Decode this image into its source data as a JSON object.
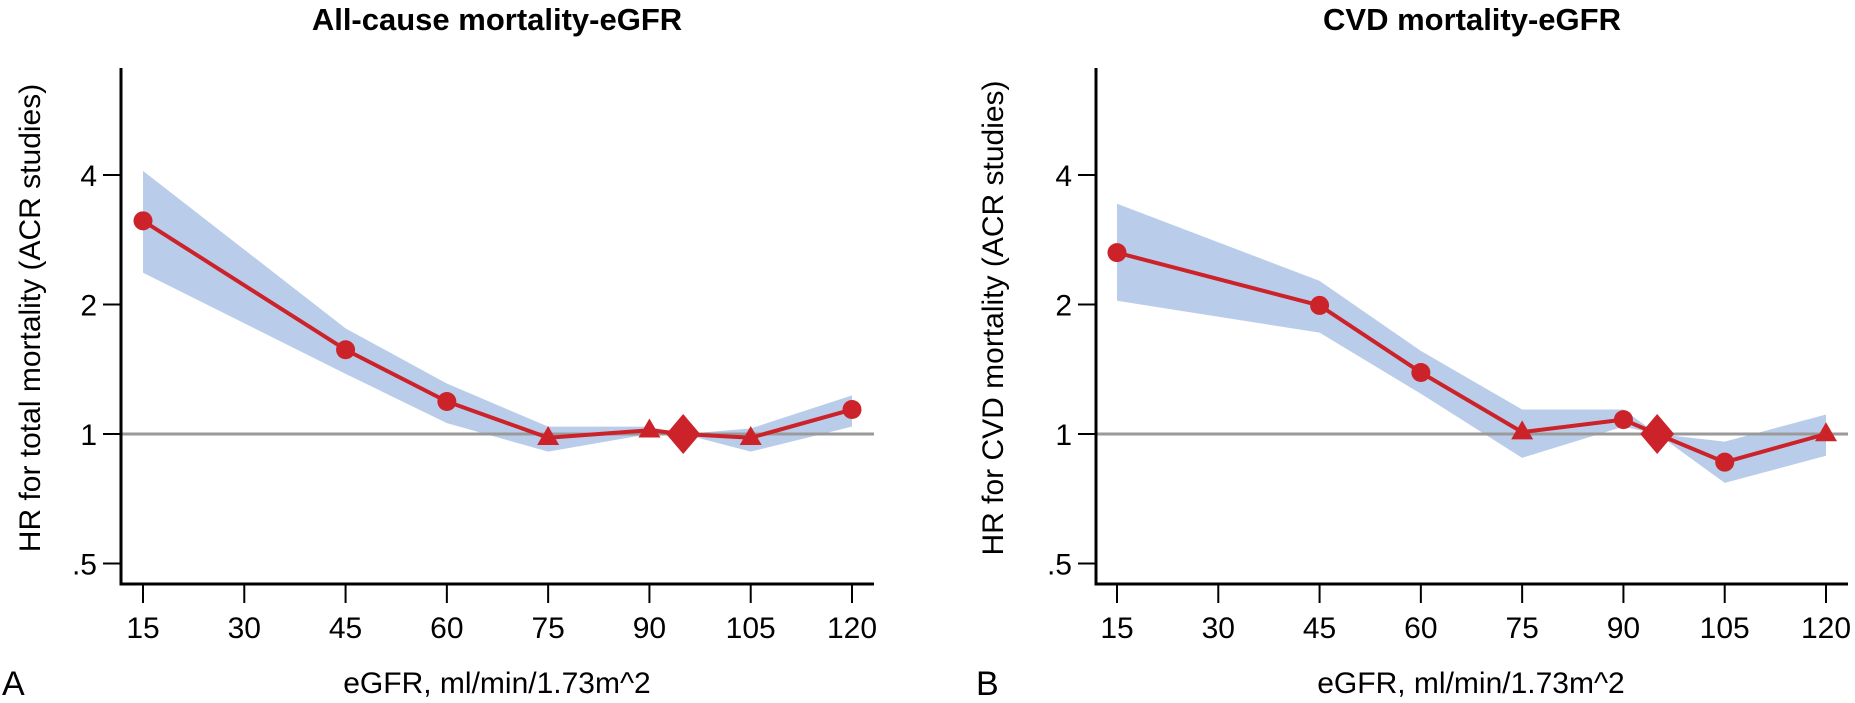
{
  "chart_data": [
    {
      "type": "line",
      "panel_letter": "A",
      "title": "All-cause mortality-eGFR",
      "xlabel": "eGFR, ml/min/1.73m^2",
      "ylabel": "HR for total mortality (ACR studies)",
      "x_ticks": [
        15,
        30,
        45,
        60,
        75,
        90,
        105,
        120
      ],
      "x_tick_labels": [
        "15",
        "30",
        "45",
        "60",
        "75",
        "90",
        "105",
        "120"
      ],
      "y_scale": "log2",
      "y_ticks": [
        0.5,
        1,
        2,
        4
      ],
      "y_tick_labels": [
        ".5",
        "1",
        "2",
        "4"
      ],
      "xlim": [
        15,
        120
      ],
      "ylim": [
        0.45,
        6.0
      ],
      "reference_line": 1,
      "grid": false,
      "series": [
        {
          "name": "HR",
          "x": [
            15,
            45,
            60,
            75,
            90,
            95,
            105,
            120
          ],
          "y": [
            3.13,
            1.57,
            1.19,
            0.98,
            1.02,
            1.0,
            0.98,
            1.14
          ],
          "markers": [
            "circle",
            "circle",
            "circle",
            "triangle",
            "triangle",
            "diamond",
            "triangle",
            "circle"
          ],
          "ci_lower": [
            2.37,
            1.38,
            1.06,
            0.91,
            1.0,
            1.0,
            0.91,
            1.04
          ],
          "ci_upper": [
            4.09,
            1.76,
            1.31,
            1.04,
            1.04,
            1.0,
            1.03,
            1.23
          ]
        }
      ]
    },
    {
      "type": "line",
      "panel_letter": "B",
      "title": "CVD mortality-eGFR",
      "xlabel": "eGFR, ml/min/1.73m^2",
      "ylabel": "HR for CVD mortality (ACR studies)",
      "x_ticks": [
        15,
        30,
        45,
        60,
        75,
        90,
        105,
        120
      ],
      "x_tick_labels": [
        "15",
        "30",
        "45",
        "60",
        "75",
        "90",
        "105",
        "120"
      ],
      "y_scale": "log2",
      "y_ticks": [
        0.5,
        1,
        2,
        4
      ],
      "y_tick_labels": [
        ".5",
        "1",
        "2",
        "4"
      ],
      "xlim": [
        15,
        120
      ],
      "ylim": [
        0.45,
        6.0
      ],
      "reference_line": 1,
      "grid": false,
      "series": [
        {
          "name": "HR",
          "x": [
            15,
            45,
            60,
            75,
            90,
            95,
            105,
            120
          ],
          "y": [
            2.64,
            1.99,
            1.39,
            1.01,
            1.08,
            1.0,
            0.86,
            1.0
          ],
          "markers": [
            "circle",
            "circle",
            "circle",
            "triangle",
            "circle",
            "diamond",
            "circle",
            "triangle"
          ],
          "ci_lower": [
            2.04,
            1.72,
            1.24,
            0.88,
            1.04,
            1.0,
            0.77,
            0.89
          ],
          "ci_upper": [
            3.43,
            2.27,
            1.56,
            1.14,
            1.14,
            1.0,
            0.96,
            1.11
          ]
        }
      ]
    }
  ],
  "colors": {
    "line": "#cc2229",
    "ci_band": "#b9cdea",
    "reference_line": "#9a9a9a",
    "axis": "#000000"
  }
}
